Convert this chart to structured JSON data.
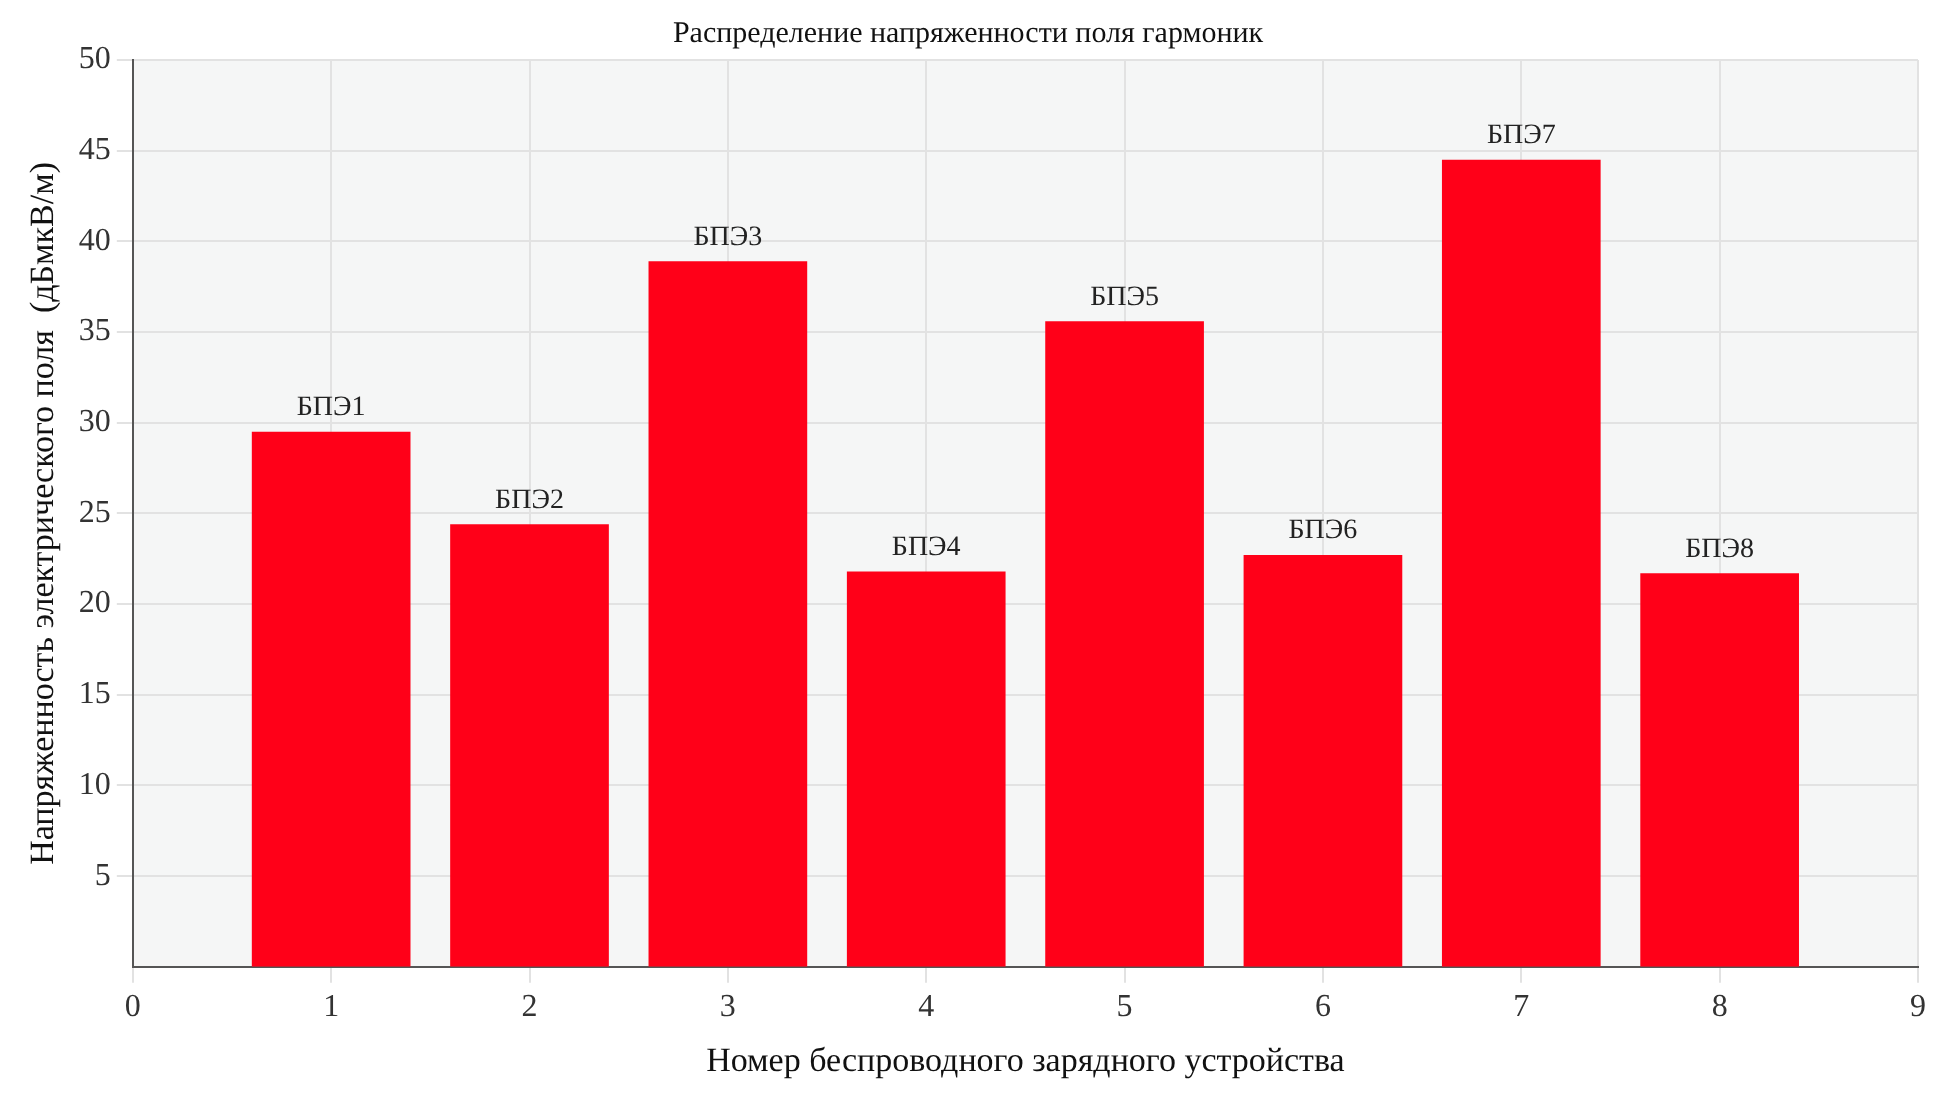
{
  "chart_data": {
    "type": "bar",
    "title": "Распределение напряженности поля гармоник",
    "xlabel": "Номер беспроводного зарядного устройства",
    "ylabel": "Напряженность электрического поля  (дБмкВ/м)",
    "x": [
      1,
      2,
      3,
      4,
      5,
      6,
      7,
      8
    ],
    "values": [
      29.5,
      24.4,
      38.9,
      21.8,
      35.6,
      22.7,
      44.5,
      21.7
    ],
    "color": "#ff0018",
    "xlim": [
      0,
      9
    ],
    "xticks": [
      0,
      1,
      2,
      3,
      4,
      5,
      6,
      7,
      8,
      9
    ],
    "ylim": [
      0,
      50
    ],
    "yticks": [
      5,
      10,
      15,
      20,
      25,
      30,
      35,
      40,
      45,
      50
    ],
    "grid": true,
    "annotations": [
      {
        "text": "БПЭ1",
        "x": 1,
        "y": 29.5
      },
      {
        "text": "БПЭ2",
        "x": 2,
        "y": 24.4
      },
      {
        "text": "БПЭ3",
        "x": 3,
        "y": 38.9
      },
      {
        "text": "БПЭ4",
        "x": 4,
        "y": 21.8
      },
      {
        "text": "БПЭ5",
        "x": 5,
        "y": 35.6
      },
      {
        "text": "БПЭ6",
        "x": 6,
        "y": 22.7
      },
      {
        "text": "БПЭ7",
        "x": 7,
        "y": 44.5
      },
      {
        "text": "БПЭ8",
        "x": 8,
        "y": 21.7
      }
    ]
  }
}
